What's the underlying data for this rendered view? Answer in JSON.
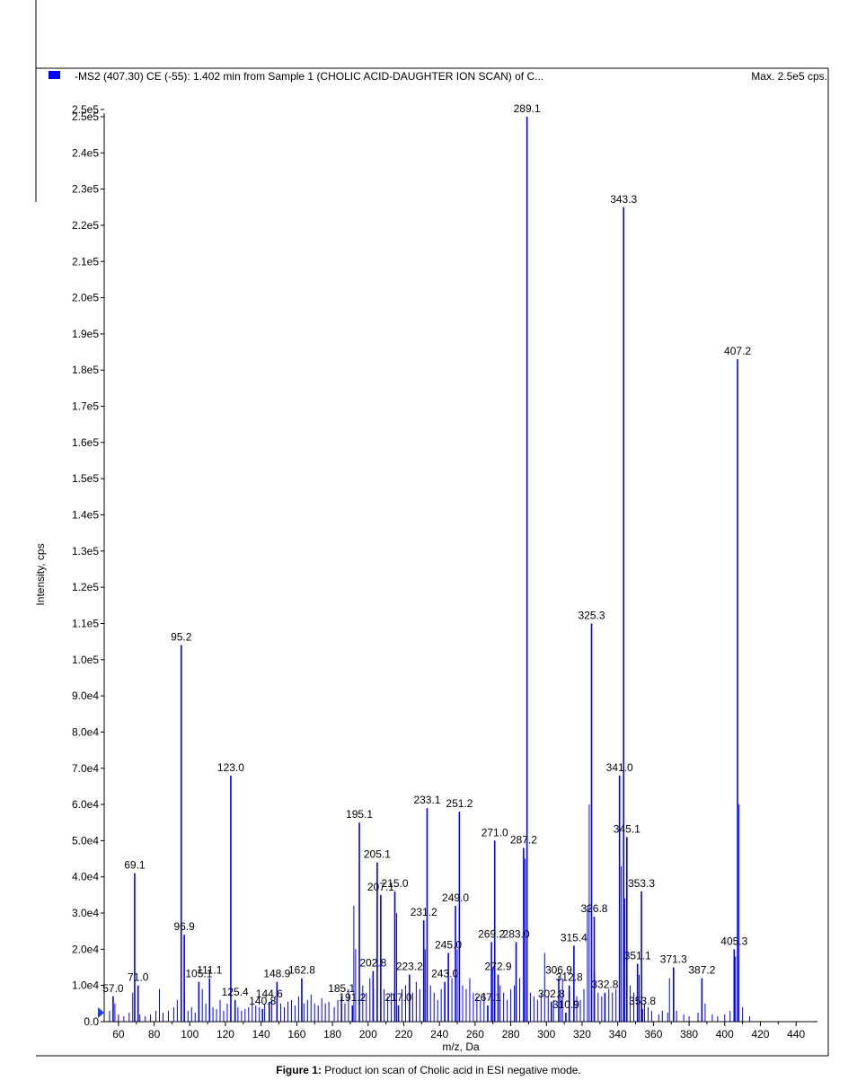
{
  "header": {
    "title": "-MS2 (407.30) CE (-55): 1.402 min from Sample 1 (CHOLIC ACID-DAUGHTER ION SCAN) of C...",
    "max_label": "Max. 2.5e5 cps."
  },
  "caption": {
    "label": "Figure 1:",
    "text": " Product ion scan of Cholic acid in ESI negative mode."
  },
  "colors": {
    "peak": "#0000ff",
    "axis": "#000000",
    "legend_swatch": "#0000ff"
  },
  "chart_data": {
    "type": "bar",
    "xlabel": "m/z, Da",
    "ylabel": "Intensity, cps",
    "xlim": [
      52,
      452
    ],
    "ylim": [
      0,
      250000
    ],
    "x_ticks": [
      60,
      80,
      100,
      120,
      140,
      160,
      180,
      200,
      220,
      240,
      260,
      280,
      300,
      320,
      340,
      360,
      380,
      400,
      420,
      440
    ],
    "y_ticks": [
      {
        "v": 0,
        "label": "0.0"
      },
      {
        "v": 10000,
        "label": "1.0e4"
      },
      {
        "v": 20000,
        "label": "2.0e4"
      },
      {
        "v": 30000,
        "label": "3.0e4"
      },
      {
        "v": 40000,
        "label": "4.0e4"
      },
      {
        "v": 50000,
        "label": "5.0e4"
      },
      {
        "v": 60000,
        "label": "6.0e4"
      },
      {
        "v": 70000,
        "label": "7.0e4"
      },
      {
        "v": 80000,
        "label": "8.0e4"
      },
      {
        "v": 90000,
        "label": "9.0e4"
      },
      {
        "v": 100000,
        "label": "1.0e5"
      },
      {
        "v": 110000,
        "label": "1.1e5"
      },
      {
        "v": 120000,
        "label": "1.2e5"
      },
      {
        "v": 130000,
        "label": "1.3e5"
      },
      {
        "v": 140000,
        "label": "1.4e5"
      },
      {
        "v": 150000,
        "label": "1.5e5"
      },
      {
        "v": 160000,
        "label": "1.6e5"
      },
      {
        "v": 170000,
        "label": "1.7e5"
      },
      {
        "v": 180000,
        "label": "1.8e5"
      },
      {
        "v": 190000,
        "label": "1.9e5"
      },
      {
        "v": 200000,
        "label": "2.0e5"
      },
      {
        "v": 210000,
        "label": "2.1e5"
      },
      {
        "v": 220000,
        "label": "2.2e5"
      },
      {
        "v": 230000,
        "label": "2.3e5"
      },
      {
        "v": 240000,
        "label": "2.4e5"
      },
      {
        "v": 250000,
        "label": "2.5e5"
      },
      {
        "v": 252000,
        "label": "2.5e5"
      }
    ],
    "peaks": [
      {
        "mz": 57.0,
        "intensity": 7000,
        "label": "57.0"
      },
      {
        "mz": 69.1,
        "intensity": 41000,
        "label": "69.1"
      },
      {
        "mz": 71.0,
        "intensity": 10000,
        "label": "71.0"
      },
      {
        "mz": 95.2,
        "intensity": 104000,
        "label": "95.2"
      },
      {
        "mz": 96.9,
        "intensity": 24000,
        "label": "96.9"
      },
      {
        "mz": 105.1,
        "intensity": 11000,
        "label": "105.1"
      },
      {
        "mz": 111.1,
        "intensity": 12000,
        "label": "111.1"
      },
      {
        "mz": 125.4,
        "intensity": 6000,
        "label": "125.4"
      },
      {
        "mz": 123.0,
        "intensity": 68000,
        "label": "123.0"
      },
      {
        "mz": 140.8,
        "intensity": 3500,
        "label": "140.8"
      },
      {
        "mz": 144.6,
        "intensity": 5500,
        "label": "144.6"
      },
      {
        "mz": 148.9,
        "intensity": 11000,
        "label": "148.9"
      },
      {
        "mz": 162.8,
        "intensity": 12000,
        "label": "162.8"
      },
      {
        "mz": 185.1,
        "intensity": 7000,
        "label": "185.1"
      },
      {
        "mz": 191.2,
        "intensity": 4500,
        "label": "191.2"
      },
      {
        "mz": 195.1,
        "intensity": 55000,
        "label": "195.1"
      },
      {
        "mz": 202.8,
        "intensity": 14000,
        "label": "202.8"
      },
      {
        "mz": 205.1,
        "intensity": 44000,
        "label": "205.1"
      },
      {
        "mz": 207.1,
        "intensity": 35000,
        "label": "207.1"
      },
      {
        "mz": 215.0,
        "intensity": 36000,
        "label": "215.0"
      },
      {
        "mz": 217.0,
        "intensity": 4500,
        "label": "217.0"
      },
      {
        "mz": 223.2,
        "intensity": 13000,
        "label": "223.2"
      },
      {
        "mz": 231.2,
        "intensity": 28000,
        "label": "231.2"
      },
      {
        "mz": 233.1,
        "intensity": 59000,
        "label": "233.1"
      },
      {
        "mz": 243.0,
        "intensity": 11000,
        "label": "243.0"
      },
      {
        "mz": 245.0,
        "intensity": 19000,
        "label": "245.0"
      },
      {
        "mz": 249.0,
        "intensity": 32000,
        "label": "249.0"
      },
      {
        "mz": 251.2,
        "intensity": 58000,
        "label": "251.2"
      },
      {
        "mz": 267.1,
        "intensity": 4500,
        "label": "267.1"
      },
      {
        "mz": 269.2,
        "intensity": 22000,
        "label": "269.2"
      },
      {
        "mz": 271.0,
        "intensity": 50000,
        "label": "271.0"
      },
      {
        "mz": 272.9,
        "intensity": 13000,
        "label": "272.9"
      },
      {
        "mz": 283.0,
        "intensity": 22000,
        "label": "283.0"
      },
      {
        "mz": 287.2,
        "intensity": 48000,
        "label": "287.2"
      },
      {
        "mz": 289.1,
        "intensity": 250000,
        "label": "289.1"
      },
      {
        "mz": 302.8,
        "intensity": 5500,
        "label": "302.8"
      },
      {
        "mz": 306.9,
        "intensity": 12000,
        "label": "306.9"
      },
      {
        "mz": 310.9,
        "intensity": 2500,
        "label": "310.9"
      },
      {
        "mz": 312.8,
        "intensity": 10000,
        "label": "312.8"
      },
      {
        "mz": 315.4,
        "intensity": 21000,
        "label": "315.4"
      },
      {
        "mz": 325.3,
        "intensity": 110000,
        "label": "325.3"
      },
      {
        "mz": 326.8,
        "intensity": 29000,
        "label": "326.8"
      },
      {
        "mz": 332.8,
        "intensity": 8000,
        "label": "332.8"
      },
      {
        "mz": 341.0,
        "intensity": 68000,
        "label": "341.0"
      },
      {
        "mz": 343.3,
        "intensity": 225000,
        "label": "343.3"
      },
      {
        "mz": 345.1,
        "intensity": 51000,
        "label": "345.1"
      },
      {
        "mz": 351.1,
        "intensity": 16000,
        "label": "351.1"
      },
      {
        "mz": 353.3,
        "intensity": 36000,
        "label": "353.3"
      },
      {
        "mz": 353.8,
        "intensity": 3500,
        "label": "353.8"
      },
      {
        "mz": 371.3,
        "intensity": 15000,
        "label": "371.3"
      },
      {
        "mz": 387.2,
        "intensity": 12000,
        "label": "387.2"
      },
      {
        "mz": 405.3,
        "intensity": 20000,
        "label": "405.3"
      },
      {
        "mz": 407.2,
        "intensity": 183000,
        "label": "407.2"
      }
    ],
    "noise_peaks": [
      [
        55,
        3000
      ],
      [
        58,
        5000
      ],
      [
        60,
        2000
      ],
      [
        63,
        1500
      ],
      [
        66,
        2500
      ],
      [
        68,
        8000
      ],
      [
        72,
        2000
      ],
      [
        75,
        1500
      ],
      [
        78,
        2000
      ],
      [
        81,
        3000
      ],
      [
        83,
        9000
      ],
      [
        85,
        2500
      ],
      [
        88,
        3000
      ],
      [
        91,
        4000
      ],
      [
        93,
        6000
      ],
      [
        97,
        8000
      ],
      [
        99,
        3000
      ],
      [
        101,
        4000
      ],
      [
        103,
        2500
      ],
      [
        107,
        9000
      ],
      [
        109,
        5000
      ],
      [
        113,
        4000
      ],
      [
        115,
        3500
      ],
      [
        117,
        6000
      ],
      [
        119,
        3000
      ],
      [
        121,
        5000
      ],
      [
        127,
        4000
      ],
      [
        129,
        3000
      ],
      [
        131,
        3500
      ],
      [
        133,
        4000
      ],
      [
        135,
        5000
      ],
      [
        137,
        4500
      ],
      [
        139,
        4000
      ],
      [
        142,
        5000
      ],
      [
        146,
        6000
      ],
      [
        151,
        5000
      ],
      [
        153,
        4000
      ],
      [
        155,
        5500
      ],
      [
        157,
        6000
      ],
      [
        159,
        4500
      ],
      [
        161,
        7000
      ],
      [
        164,
        5000
      ],
      [
        166,
        6000
      ],
      [
        168,
        7500
      ],
      [
        170,
        5000
      ],
      [
        172,
        4500
      ],
      [
        174,
        6500
      ],
      [
        176,
        5000
      ],
      [
        178,
        5500
      ],
      [
        181,
        4000
      ],
      [
        183,
        6000
      ],
      [
        187,
        5000
      ],
      [
        189,
        9000
      ],
      [
        192,
        32000
      ],
      [
        193,
        20000
      ],
      [
        197,
        10000
      ],
      [
        199,
        8000
      ],
      [
        201,
        12000
      ],
      [
        203,
        9000
      ],
      [
        209,
        9000
      ],
      [
        211,
        7000
      ],
      [
        213,
        8000
      ],
      [
        216,
        30000
      ],
      [
        219,
        9000
      ],
      [
        221,
        10000
      ],
      [
        225,
        8000
      ],
      [
        227,
        11000
      ],
      [
        229,
        9000
      ],
      [
        232,
        20000
      ],
      [
        235,
        10000
      ],
      [
        237,
        8000
      ],
      [
        239,
        6000
      ],
      [
        241,
        9000
      ],
      [
        247,
        12000
      ],
      [
        250,
        20000
      ],
      [
        253,
        10000
      ],
      [
        255,
        9000
      ],
      [
        257,
        12000
      ],
      [
        259,
        8000
      ],
      [
        261,
        7000
      ],
      [
        263,
        6000
      ],
      [
        265,
        8000
      ],
      [
        270,
        15000
      ],
      [
        274,
        10000
      ],
      [
        276,
        8000
      ],
      [
        278,
        6000
      ],
      [
        280,
        9000
      ],
      [
        282,
        10000
      ],
      [
        285,
        12000
      ],
      [
        288,
        45000
      ],
      [
        291,
        8000
      ],
      [
        293,
        7000
      ],
      [
        295,
        6000
      ],
      [
        297,
        8000
      ],
      [
        299,
        19000
      ],
      [
        301,
        7000
      ],
      [
        304,
        6000
      ],
      [
        308,
        7000
      ],
      [
        309,
        12000
      ],
      [
        313,
        8000
      ],
      [
        317,
        7000
      ],
      [
        319,
        6000
      ],
      [
        321,
        9000
      ],
      [
        323,
        32000
      ],
      [
        324,
        60000
      ],
      [
        327,
        14000
      ],
      [
        329,
        8000
      ],
      [
        331,
        7000
      ],
      [
        335,
        9000
      ],
      [
        337,
        8000
      ],
      [
        339,
        9000
      ],
      [
        342,
        43000
      ],
      [
        344,
        34000
      ],
      [
        347,
        10000
      ],
      [
        349,
        8000
      ],
      [
        352,
        13000
      ],
      [
        355,
        5000
      ],
      [
        357,
        4000
      ],
      [
        359,
        3000
      ],
      [
        363,
        2000
      ],
      [
        365,
        3000
      ],
      [
        368,
        2500
      ],
      [
        369,
        12000
      ],
      [
        373,
        3000
      ],
      [
        377,
        2000
      ],
      [
        380,
        1500
      ],
      [
        385,
        2500
      ],
      [
        389,
        5000
      ],
      [
        393,
        2000
      ],
      [
        396,
        1500
      ],
      [
        400,
        2000
      ],
      [
        403,
        3000
      ],
      [
        406,
        18000
      ],
      [
        408,
        60000
      ],
      [
        410,
        4000
      ],
      [
        414,
        1500
      ]
    ]
  }
}
